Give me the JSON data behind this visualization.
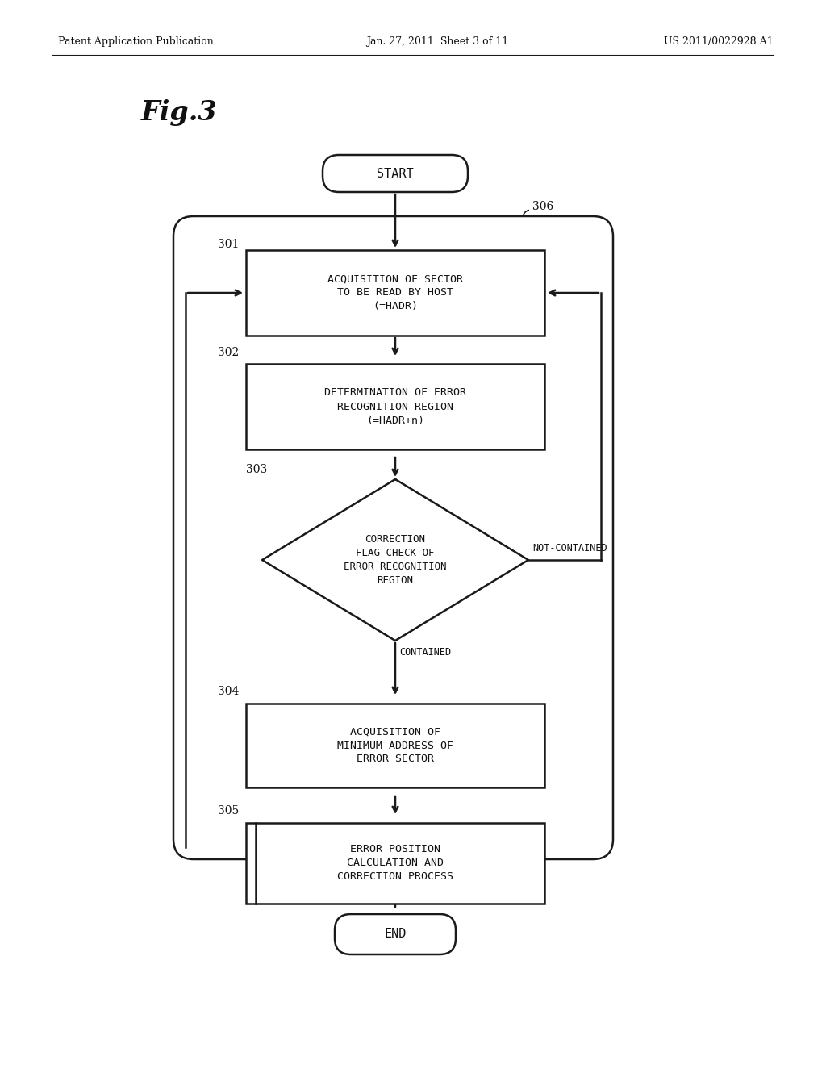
{
  "bg_color": "#ffffff",
  "header_left": "Patent Application Publication",
  "header_center": "Jan. 27, 2011  Sheet 3 of 11",
  "header_right": "US 2011/0022928 A1",
  "fig_label": "Fig.3",
  "lw": 1.8,
  "arrow_scale": 12,
  "font_mono": "DejaVu Sans Mono",
  "font_serif": "DejaVu Serif",
  "color_line": "#1a1a1a",
  "color_bg": "#ffffff"
}
